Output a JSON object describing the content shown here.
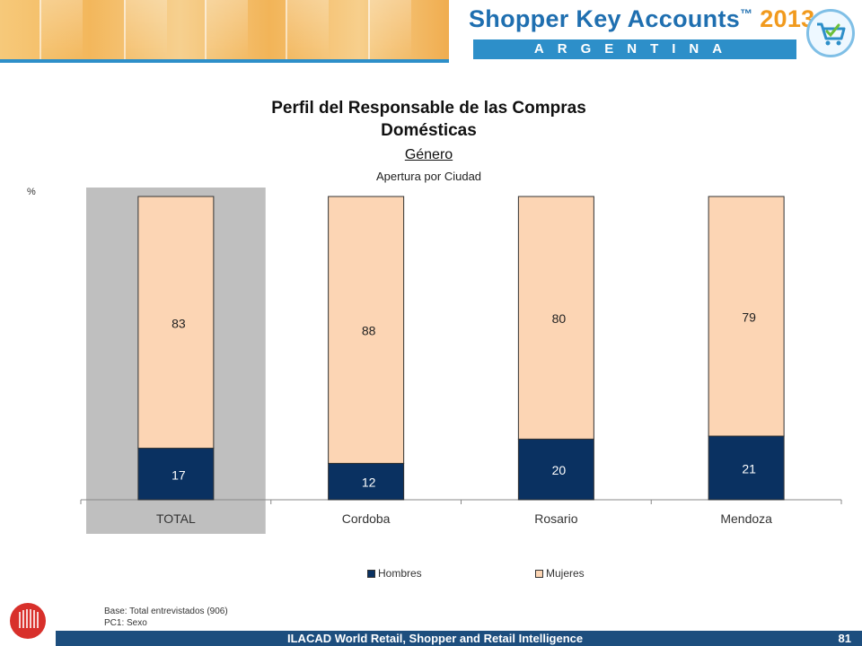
{
  "header": {
    "brand_name": "Shopper Key Accounts",
    "brand_tm": "™",
    "brand_year": "2013",
    "country": "ARGENTINA",
    "cart_icon": "shopping-cart-icon"
  },
  "chart_data": {
    "type": "bar",
    "stacked": true,
    "title_line1": "Perfil del Responsable de las Compras",
    "title_line2": "Domésticas",
    "subtitle": "Género",
    "caption": "Apertura por Ciudad",
    "ylabel": "%",
    "categories": [
      "TOTAL",
      "Cordoba",
      "Rosario",
      "Mendoza"
    ],
    "highlighted_category": "TOTAL",
    "ylim": [
      0,
      100
    ],
    "series": [
      {
        "name": "Hombres",
        "values": [
          17,
          12,
          20,
          21
        ],
        "color": "#0a3161"
      },
      {
        "name": "Mujeres",
        "values": [
          83,
          88,
          80,
          79
        ],
        "color": "#fcd5b4"
      }
    ],
    "legend_position": "bottom"
  },
  "footnotes": {
    "base": "Base: Total entrevistados (906)",
    "question": "PC1: Sexo"
  },
  "footer": {
    "text": "ILACAD World Retail, Shopper and Retail Intelligence",
    "page": "81",
    "logo_icon": "ilacad-logo-icon"
  }
}
